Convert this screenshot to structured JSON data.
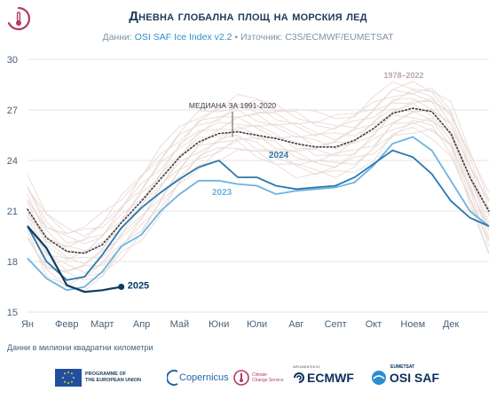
{
  "header": {
    "title": "Дневна глобална площ на морския лед",
    "subtitle_prefix": "Данни: ",
    "subtitle_dataset": "OSI SAF Ice Index v2.2",
    "subtitle_sep": " • ",
    "subtitle_source": "Източник: C3S/ECMWF/EUMETSAT"
  },
  "footnote": "Данни в милиони квадратни километри",
  "logos": {
    "eu_line1": "PROGRAMME OF",
    "eu_line2": "THE EUROPEAN UNION",
    "copernicus": "Copernicus",
    "c3s_line1": "Climate",
    "c3s_line2": "Change Service",
    "ecmwf_small": "IMPLEMENTED BY",
    "ecmwf": "ECMWF",
    "osi_small": "EUMETSAT",
    "osi": "OSI SAF"
  },
  "colors": {
    "history": "#e7d7d3",
    "median": "#3c3c3c",
    "y2023": "#6bb3e0",
    "y2024": "#2b77ad",
    "y2025": "#0d3b66",
    "grid": "#e3e3e3",
    "axis_text": "#4a6177"
  },
  "chart_data": {
    "type": "line",
    "title": "Дневна глобална площ на морския лед",
    "ylabel": "",
    "xlabel": "",
    "ylim": [
      15,
      30
    ],
    "yticks": [
      15,
      18,
      21,
      24,
      27,
      30
    ],
    "x_categories": [
      "Ян",
      "Февр",
      "Март",
      "Апр",
      "Май",
      "Юни",
      "Юли",
      "Авг",
      "Септ",
      "Окт",
      "Ноем",
      "Дек"
    ],
    "grid": true,
    "annotations": {
      "median_label": "МЕДИАНА ЗА 1991-2020",
      "range_label": "1978–2022"
    },
    "x_day": [
      1,
      16,
      32,
      46,
      60,
      75,
      91,
      106,
      121,
      136,
      152,
      167,
      182,
      197,
      213,
      228,
      244,
      259,
      274,
      289,
      305,
      320,
      335,
      350,
      365
    ],
    "history_envelope": {
      "lower": [
        19.4,
        17.2,
        16.6,
        16.6,
        17.0,
        18.3,
        19.5,
        21.0,
        22.5,
        23.6,
        24.3,
        24.7,
        24.2,
        23.8,
        23.3,
        23.1,
        23.1,
        23.5,
        24.2,
        25.3,
        25.8,
        25.6,
        24.4,
        21.4,
        18.5
      ],
      "upper": [
        22.8,
        20.8,
        20.0,
        20.0,
        20.6,
        21.8,
        23.3,
        24.6,
        25.8,
        26.8,
        27.2,
        27.6,
        27.6,
        27.3,
        27.0,
        26.6,
        26.6,
        26.9,
        27.6,
        28.4,
        28.5,
        28.3,
        27.2,
        24.4,
        22.0
      ]
    },
    "series": [
      {
        "name": "МЕДИАНА ЗА 1991-2020",
        "style": "dotted",
        "values": [
          21.1,
          19.4,
          18.6,
          18.5,
          19.0,
          20.3,
          21.6,
          22.9,
          24.2,
          25.1,
          25.6,
          25.7,
          25.5,
          25.3,
          25.0,
          24.8,
          24.8,
          25.2,
          25.9,
          26.8,
          27.1,
          26.9,
          25.6,
          23.0,
          21.0
        ]
      },
      {
        "name": "2023",
        "values": [
          18.2,
          17.0,
          16.3,
          16.5,
          17.4,
          18.9,
          19.6,
          21.0,
          22.0,
          22.8,
          22.8,
          22.6,
          22.5,
          22.0,
          22.2,
          22.3,
          22.4,
          22.7,
          23.7,
          25.0,
          25.4,
          24.6,
          22.8,
          21.0,
          20.1
        ]
      },
      {
        "name": "2024",
        "values": [
          20.1,
          18.0,
          16.9,
          17.1,
          18.4,
          20.0,
          21.2,
          22.1,
          22.9,
          23.6,
          24.0,
          23.0,
          23.0,
          22.5,
          22.3,
          22.4,
          22.5,
          23.0,
          23.8,
          24.6,
          24.2,
          23.2,
          21.6,
          20.6,
          20.1
        ]
      },
      {
        "name": "2025",
        "values": [
          20.1,
          18.8,
          16.6,
          16.2,
          16.3,
          16.5,
          null,
          null,
          null,
          null,
          null,
          null,
          null,
          null,
          null,
          null,
          null,
          null,
          null,
          null,
          null,
          null,
          null,
          null,
          null
        ]
      }
    ]
  }
}
